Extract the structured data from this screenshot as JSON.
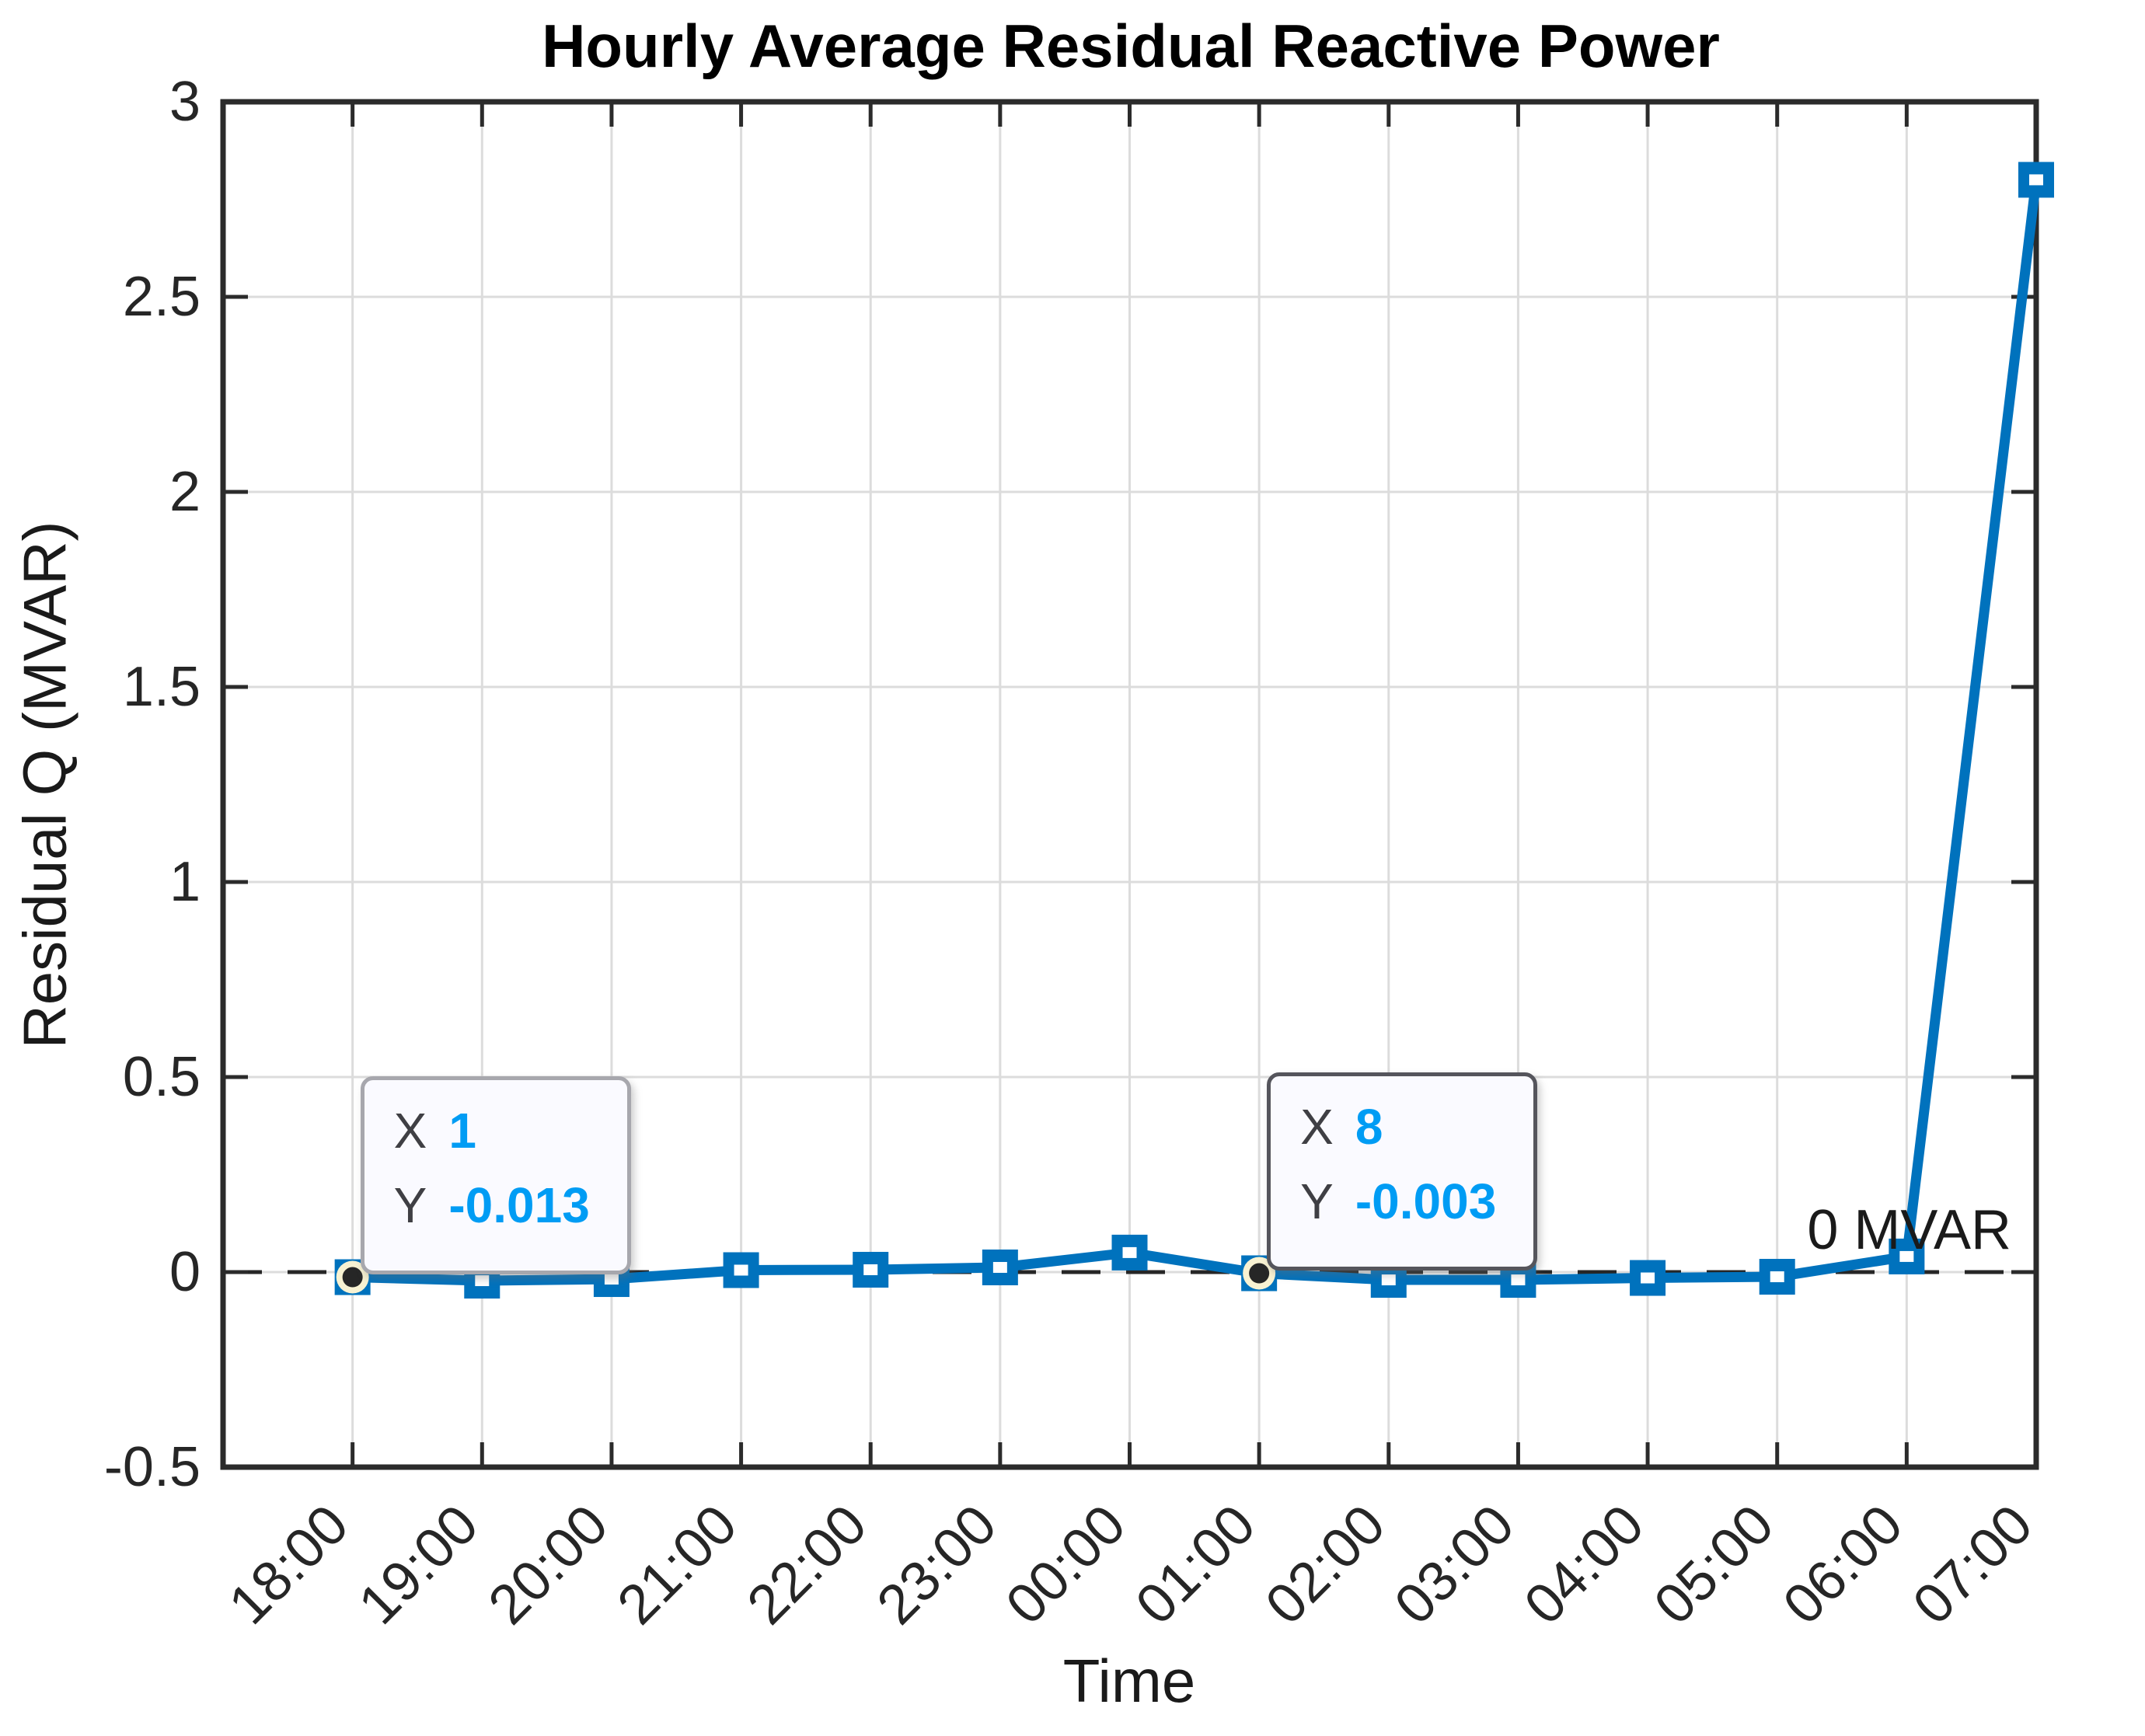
{
  "figure": {
    "title": "Hourly Average Residual Reactive Power",
    "xlabel": "Time",
    "ylabel": "Residual Q (MVAR)"
  },
  "chart_data": {
    "type": "line",
    "title": "Hourly Average Residual Reactive Power",
    "xlabel": "Time",
    "ylabel": "Residual Q (MVAR)",
    "categories": [
      "18:00",
      "19:00",
      "20:00",
      "21:00",
      "22:00",
      "23:00",
      "00:00",
      "01:00",
      "02:00",
      "03:00",
      "04:00",
      "05:00",
      "06:00",
      "07:00"
    ],
    "x": [
      1,
      2,
      3,
      4,
      5,
      6,
      7,
      8,
      9,
      10,
      11,
      12,
      13,
      14
    ],
    "values": [
      -0.013,
      -0.022,
      -0.018,
      0.005,
      0.006,
      0.012,
      0.05,
      -0.003,
      -0.02,
      -0.02,
      -0.015,
      -0.012,
      0.04,
      2.8
    ],
    "series": [
      {
        "name": "Residual Q",
        "values": [
          -0.013,
          -0.022,
          -0.018,
          0.005,
          0.006,
          0.012,
          0.05,
          -0.003,
          -0.02,
          -0.02,
          -0.015,
          -0.012,
          0.04,
          2.8
        ]
      }
    ],
    "ylim": [
      -0.5,
      3
    ],
    "yticks": [
      -0.5,
      0,
      0.5,
      1,
      1.5,
      2,
      2.5,
      3
    ],
    "ytick_labels": [
      "-0.5",
      "0",
      "0.5",
      "1",
      "1.5",
      "2",
      "2.5",
      "3"
    ],
    "grid": true,
    "legend": "none",
    "marker": "square",
    "line_color": "#0072BD",
    "zero_line": {
      "y": 0,
      "style": "dashed",
      "color": "#262626"
    },
    "annotations": [
      {
        "text": "0 MVAR",
        "x": 13.02,
        "y": 0.107
      }
    ],
    "datatips": [
      {
        "x_label": "X",
        "x_display": "1",
        "y_label": "Y",
        "y_display": "-0.013",
        "x": 1,
        "y": -0.013,
        "border_color": "#a7a7ad"
      },
      {
        "x_label": "X",
        "x_display": "8",
        "y_label": "Y",
        "y_display": "-0.003",
        "x": 8,
        "y": -0.003,
        "border_color": "#55555c"
      }
    ]
  },
  "colors": {
    "line": "#0072BD",
    "grid": "#dcdcdc",
    "axis": "#2b2b2b",
    "background": "#ffffff",
    "tip_bg": "#fafaff",
    "tip_label": "#3f3f44",
    "tip_value": "#009cf4",
    "anchor_ring": "#f8f2d2",
    "anchor_dot": "#262626"
  }
}
